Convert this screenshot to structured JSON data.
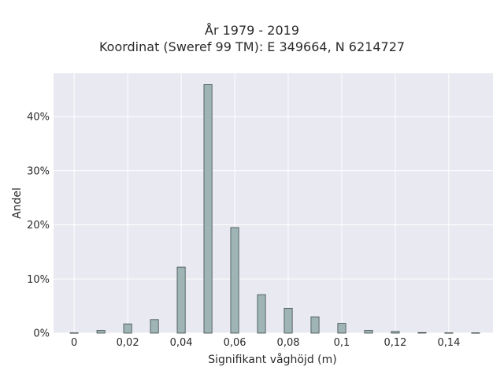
{
  "chart_data": {
    "type": "bar",
    "title_lines": [
      "År 1979 - 2019",
      "Koordinat (Sweref 99 TM): E 349664, N 6214727"
    ],
    "xlabel": "Signifikant våghöjd (m)",
    "ylabel": "Andel",
    "x_ticks": [
      {
        "value": 0,
        "label": "0"
      },
      {
        "value": 0.02,
        "label": "0,02"
      },
      {
        "value": 0.04,
        "label": "0,04"
      },
      {
        "value": 0.06,
        "label": "0,06"
      },
      {
        "value": 0.08,
        "label": "0,08"
      },
      {
        "value": 0.1,
        "label": "0,1"
      },
      {
        "value": 0.12,
        "label": "0,12"
      },
      {
        "value": 0.14,
        "label": "0,14"
      }
    ],
    "y_ticks": [
      {
        "value": 0,
        "label": "0%"
      },
      {
        "value": 10,
        "label": "10%"
      },
      {
        "value": 20,
        "label": "20%"
      },
      {
        "value": 30,
        "label": "30%"
      },
      {
        "value": 40,
        "label": "40%"
      }
    ],
    "xlim": [
      -0.0077,
      0.1565
    ],
    "ylim": [
      0,
      48
    ],
    "bin_width": 0.003,
    "x": [
      0,
      0.01,
      0.02,
      0.03,
      0.04,
      0.05,
      0.06,
      0.07,
      0.08,
      0.09,
      0.1,
      0.11,
      0.12,
      0.13,
      0.14,
      0.15
    ],
    "values": [
      0.05,
      0.5,
      1.7,
      2.5,
      12.2,
      45.9,
      19.5,
      7.1,
      4.6,
      3.0,
      1.8,
      0.5,
      0.3,
      0.1,
      0.05,
      0.05
    ],
    "grid": true,
    "colors": {
      "bar_fill": "#9fb5b5",
      "bar_stroke": "#3c4a4a",
      "plot_background": "#e9e9f1",
      "grid": "#ffffff"
    }
  }
}
